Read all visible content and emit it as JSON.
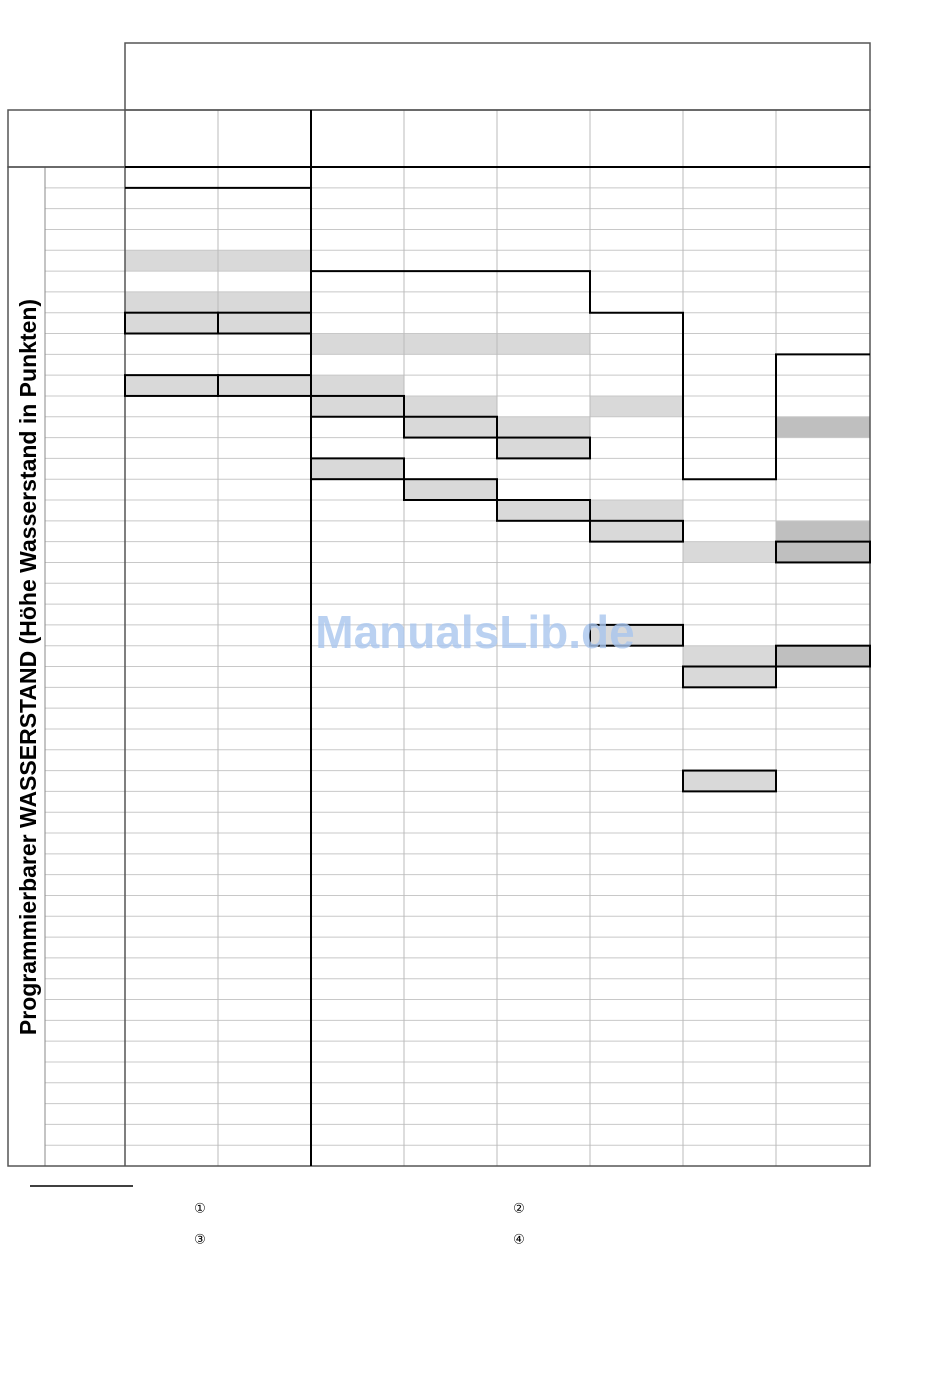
{
  "side_label": "Programmierbarer WASSERSTAND (Höhe Wasserstand in Punkten)",
  "watermark": "ManualsLib.de",
  "footnotes": [
    "①",
    "②",
    "③",
    "④"
  ]
}
